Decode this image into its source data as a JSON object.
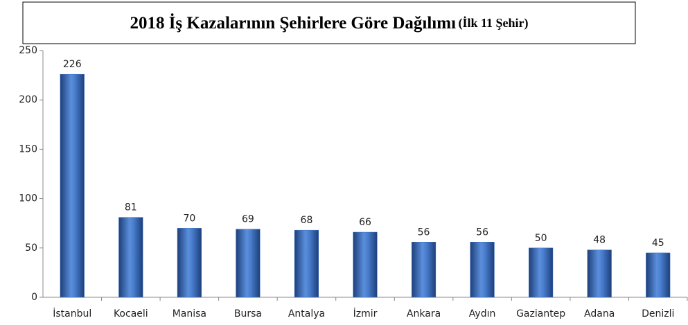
{
  "chart_data": {
    "type": "bar",
    "title": "2018 İş Kazalarının Şehirlere Göre Dağılımı",
    "subtitle": "(İlk 11 Şehir)",
    "categories": [
      "İstanbul",
      "Kocaeli",
      "Manisa",
      "Bursa",
      "Antalya",
      "İzmir",
      "Ankara",
      "Aydın",
      "Gaziantep",
      "Adana",
      "Denizli"
    ],
    "values": [
      226,
      81,
      70,
      69,
      68,
      66,
      56,
      56,
      50,
      48,
      45
    ],
    "color": "#3a6fc0",
    "ylim": [
      0,
      250
    ],
    "yticks": [
      0,
      50,
      100,
      150,
      200,
      250
    ],
    "grid": false
  }
}
